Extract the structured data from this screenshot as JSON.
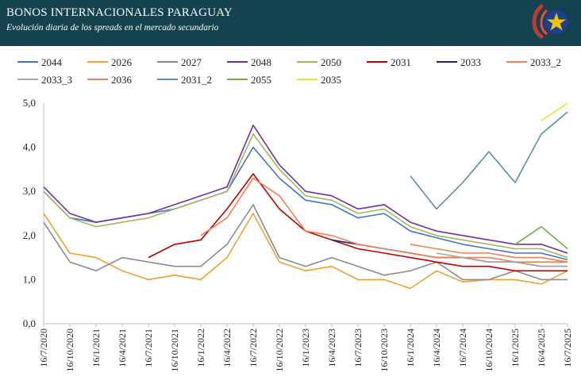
{
  "header": {
    "title": "BONOS INTERNACIONALES PARAGUAY",
    "subtitle": "Evolución diaria de los spreads en el mercado secundario",
    "bg_color": "#15424f",
    "seal_icon": "paraguay-seal-icon"
  },
  "chart_data": {
    "type": "line",
    "title": "BONOS INTERNACIONALES PARAGUAY",
    "subtitle": "Evolución diaria de los spreads en el mercado secundario",
    "xlabel": "",
    "ylabel": "",
    "ylim": [
      0,
      5
    ],
    "yticks": [
      "0,0",
      "1,0",
      "2,0",
      "3,0",
      "4,0",
      "5,0"
    ],
    "xticks": [
      "16/7/2020",
      "16/10/2020",
      "16/1/2021",
      "16/4/2021",
      "16/7/2021",
      "16/10/2021",
      "16/1/2022",
      "16/4/2022",
      "16/7/2022",
      "16/10/2022",
      "16/1/2023",
      "16/4/2023",
      "16/7/2023",
      "16/10/2023",
      "16/1/2024",
      "16/4/2024",
      "16/7/2024",
      "16/10/2024",
      "16/1/2025",
      "16/4/2025",
      "16/7/2025"
    ],
    "grid": false,
    "legend_position": "top",
    "series": [
      {
        "name": "2044",
        "color": "#4472c4",
        "x": [
          "16/7/2020",
          "16/10/2020",
          "16/1/2021",
          "16/4/2021",
          "16/7/2021",
          "16/10/2021",
          "16/1/2022",
          "16/4/2022",
          "16/7/2022",
          "16/10/2022",
          "16/1/2023",
          "16/4/2023",
          "16/7/2023",
          "16/10/2023",
          "16/1/2024",
          "16/4/2024",
          "16/7/2024",
          "16/10/2024",
          "16/1/2025",
          "16/4/2025",
          "16/7/2025"
        ],
        "values": [
          3.0,
          2.4,
          2.3,
          2.4,
          2.5,
          2.6,
          2.8,
          3.0,
          4.0,
          3.3,
          2.8,
          2.7,
          2.4,
          2.5,
          2.1,
          1.95,
          1.8,
          1.7,
          1.6,
          1.6,
          1.45
        ]
      },
      {
        "name": "2026",
        "color": "#f0a030",
        "x": [
          "16/7/2020",
          "16/10/2020",
          "16/1/2021",
          "16/4/2021",
          "16/7/2021",
          "16/10/2021",
          "16/1/2022",
          "16/4/2022",
          "16/7/2022",
          "16/10/2022",
          "16/1/2023",
          "16/4/2023",
          "16/7/2023",
          "16/10/2023",
          "16/1/2024",
          "16/4/2024",
          "16/7/2024",
          "16/10/2024",
          "16/1/2025",
          "16/4/2025",
          "16/7/2025"
        ],
        "values": [
          2.5,
          1.6,
          1.5,
          1.2,
          1.0,
          1.1,
          1.0,
          1.5,
          2.5,
          1.4,
          1.2,
          1.3,
          1.0,
          1.0,
          0.8,
          1.2,
          0.95,
          1.0,
          1.0,
          0.9,
          1.2
        ]
      },
      {
        "name": "2027",
        "color": "#8c8c8c",
        "x": [
          "16/7/2020",
          "16/10/2020",
          "16/1/2021",
          "16/4/2021",
          "16/7/2021",
          "16/10/2021",
          "16/1/2022",
          "16/4/2022",
          "16/7/2022",
          "16/10/2022",
          "16/1/2023",
          "16/4/2023",
          "16/7/2023",
          "16/10/2023",
          "16/1/2024",
          "16/4/2024",
          "16/7/2024",
          "16/10/2024",
          "16/1/2025",
          "16/4/2025",
          "16/7/2025"
        ],
        "values": [
          2.3,
          1.4,
          1.2,
          1.5,
          1.4,
          1.3,
          1.3,
          1.8,
          2.7,
          1.5,
          1.3,
          1.5,
          1.3,
          1.1,
          1.2,
          1.4,
          1.0,
          1.0,
          1.2,
          1.0,
          1.0
        ]
      },
      {
        "name": "2048",
        "color": "#7030a0",
        "x": [
          "16/7/2020",
          "16/10/2020",
          "16/1/2021",
          "16/4/2021",
          "16/7/2021",
          "16/10/2021",
          "16/1/2022",
          "16/4/2022",
          "16/7/2022",
          "16/10/2022",
          "16/1/2023",
          "16/4/2023",
          "16/7/2023",
          "16/10/2023",
          "16/1/2024",
          "16/4/2024",
          "16/7/2024",
          "16/10/2024",
          "16/1/2025",
          "16/4/2025",
          "16/7/2025"
        ],
        "values": [
          3.1,
          2.5,
          2.3,
          2.4,
          2.5,
          2.7,
          2.9,
          3.1,
          4.5,
          3.6,
          3.0,
          2.9,
          2.6,
          2.7,
          2.3,
          2.1,
          2.0,
          1.9,
          1.8,
          1.8,
          1.6
        ]
      },
      {
        "name": "2050",
        "color": "#9bbb59",
        "x": [
          "16/7/2020",
          "16/10/2020",
          "16/1/2021",
          "16/4/2021",
          "16/7/2021",
          "16/10/2021",
          "16/1/2022",
          "16/4/2022",
          "16/7/2022",
          "16/10/2022",
          "16/1/2023",
          "16/4/2023",
          "16/7/2023",
          "16/10/2023",
          "16/1/2024",
          "16/4/2024",
          "16/7/2024",
          "16/10/2024",
          "16/1/2025",
          "16/4/2025",
          "16/7/2025"
        ],
        "values": [
          3.0,
          2.4,
          2.2,
          2.3,
          2.4,
          2.6,
          2.8,
          3.0,
          4.3,
          3.5,
          2.9,
          2.8,
          2.5,
          2.6,
          2.2,
          2.0,
          1.9,
          1.8,
          1.7,
          1.7,
          1.5
        ]
      },
      {
        "name": "2031",
        "color": "#c00000",
        "x": [
          "16/7/2021",
          "16/10/2021",
          "16/1/2022",
          "16/4/2022",
          "16/7/2022",
          "16/10/2022",
          "16/1/2023",
          "16/4/2023",
          "16/7/2023",
          "16/10/2023",
          "16/1/2024",
          "16/4/2024",
          "16/7/2024",
          "16/10/2024",
          "16/1/2025",
          "16/4/2025",
          "16/7/2025"
        ],
        "values": [
          1.5,
          1.8,
          1.9,
          2.6,
          3.4,
          2.6,
          2.1,
          1.9,
          1.7,
          1.6,
          1.5,
          1.4,
          1.3,
          1.3,
          1.2,
          1.2,
          1.2
        ]
      },
      {
        "name": "2033",
        "color": "#1f1f7a",
        "x": [
          "16/4/2023",
          "16/7/2023",
          "16/10/2023",
          "16/1/2024",
          "16/4/2024",
          "16/7/2024",
          "16/10/2024",
          "16/1/2025",
          "16/4/2025",
          "16/7/2025"
        ],
        "values": [
          1.9,
          1.8,
          1.7,
          1.6,
          1.5,
          1.5,
          1.4,
          1.4,
          1.3,
          1.3
        ]
      },
      {
        "name": "2033_2",
        "color": "#f08050",
        "x": [
          "16/1/2022",
          "16/4/2022",
          "16/7/2022",
          "16/10/2022",
          "16/1/2023",
          "16/4/2023",
          "16/7/2023",
          "16/10/2023",
          "16/1/2024",
          "16/4/2024",
          "16/7/2024",
          "16/10/2024",
          "16/1/2025",
          "16/4/2025",
          "16/7/2025"
        ],
        "values": [
          2.0,
          2.4,
          3.3,
          2.9,
          2.1,
          2.0,
          1.8,
          1.7,
          1.6,
          1.5,
          1.5,
          1.5,
          1.4,
          1.4,
          1.4
        ]
      },
      {
        "name": "2033_3",
        "color": "#a6a6a6",
        "x": [
          "16/4/2024",
          "16/7/2024",
          "16/10/2024",
          "16/1/2025",
          "16/4/2025",
          "16/7/2025"
        ],
        "values": [
          1.6,
          1.5,
          1.4,
          1.4,
          1.3,
          1.3
        ]
      },
      {
        "name": "2036",
        "color": "#e8825a",
        "x": [
          "16/1/2024",
          "16/4/2024",
          "16/7/2024",
          "16/10/2024",
          "16/1/2025",
          "16/4/2025",
          "16/7/2025"
        ],
        "values": [
          1.8,
          1.7,
          1.6,
          1.6,
          1.5,
          1.5,
          1.4
        ]
      },
      {
        "name": "2031_2",
        "color": "#5b8fa8",
        "x": [
          "16/1/2024",
          "16/4/2024",
          "16/7/2024",
          "16/10/2024",
          "16/1/2025",
          "16/4/2025",
          "16/7/2025"
        ],
        "values": [
          3.35,
          2.6,
          3.2,
          3.9,
          3.2,
          4.3,
          4.8
        ]
      },
      {
        "name": "2055",
        "color": "#70ad47",
        "x": [
          "16/1/2025",
          "16/4/2025",
          "16/7/2025"
        ],
        "values": [
          1.8,
          2.2,
          1.7
        ]
      },
      {
        "name": "2035",
        "color": "#e6e62a",
        "x": [
          "16/4/2025",
          "16/7/2025"
        ],
        "values": [
          4.6,
          5.0
        ]
      }
    ]
  }
}
